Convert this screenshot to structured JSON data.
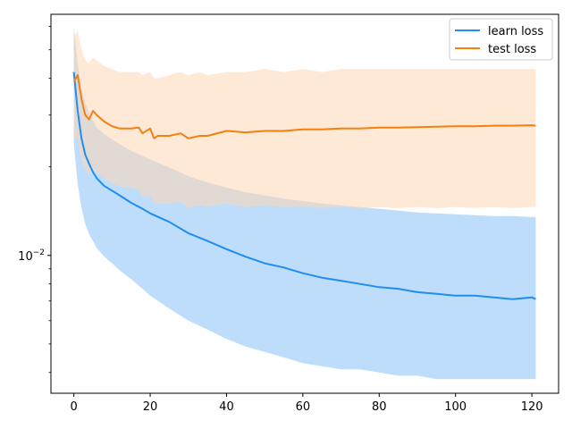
{
  "chart_data": {
    "type": "line",
    "title": "",
    "xlabel": "",
    "ylabel": "",
    "xlim": [
      -6,
      127
    ],
    "ylim": [
      0.0034,
      0.066
    ],
    "yscale": "log",
    "grid": false,
    "legend_position": "top-right",
    "x_ticks": [
      {
        "value": 0,
        "label": "0"
      },
      {
        "value": 20,
        "label": "20"
      },
      {
        "value": 40,
        "label": "40"
      },
      {
        "value": 60,
        "label": "60"
      },
      {
        "value": 80,
        "label": "80"
      },
      {
        "value": 100,
        "label": "100"
      },
      {
        "value": 120,
        "label": "120"
      }
    ],
    "y_major_ticks": [
      {
        "value": 0.01,
        "base": "10",
        "exponent": "−2"
      }
    ],
    "y_minor_ticks": [
      0.004,
      0.005,
      0.006,
      0.007,
      0.008,
      0.009,
      0.02,
      0.03,
      0.04,
      0.05,
      0.06
    ],
    "series": [
      {
        "name": "learn loss",
        "color": "#1f8ef0",
        "fill_color": "#a8d2fa",
        "x": [
          0,
          1,
          2,
          3,
          4,
          5,
          6,
          8,
          10,
          12,
          15,
          18,
          20,
          25,
          30,
          35,
          40,
          45,
          50,
          55,
          60,
          65,
          70,
          75,
          80,
          85,
          90,
          95,
          100,
          105,
          110,
          115,
          120,
          121
        ],
        "mean": [
          0.042,
          0.031,
          0.025,
          0.022,
          0.0205,
          0.0192,
          0.0183,
          0.0172,
          0.0166,
          0.016,
          0.0151,
          0.0144,
          0.0139,
          0.013,
          0.0119,
          0.0112,
          0.0105,
          0.0099,
          0.0094,
          0.0091,
          0.0087,
          0.0084,
          0.0082,
          0.008,
          0.0078,
          0.0077,
          0.0075,
          0.0074,
          0.0073,
          0.0073,
          0.0072,
          0.0071,
          0.0072,
          0.0071
        ],
        "lower": [
          0.024,
          0.0175,
          0.0145,
          0.0128,
          0.0118,
          0.0112,
          0.0106,
          0.0099,
          0.0094,
          0.0089,
          0.0083,
          0.0077,
          0.0073,
          0.0066,
          0.006,
          0.0056,
          0.0052,
          0.0049,
          0.0047,
          0.0045,
          0.0043,
          0.0042,
          0.0041,
          0.0041,
          0.004,
          0.0039,
          0.0039,
          0.0038,
          0.0038,
          0.0038,
          0.0038,
          0.0038,
          0.0038,
          0.0038
        ],
        "upper": [
          0.06,
          0.045,
          0.037,
          0.033,
          0.0305,
          0.0287,
          0.0273,
          0.0258,
          0.0248,
          0.0239,
          0.0227,
          0.0218,
          0.0212,
          0.0199,
          0.0186,
          0.0177,
          0.017,
          0.0164,
          0.016,
          0.0156,
          0.0153,
          0.015,
          0.0148,
          0.0146,
          0.0144,
          0.0142,
          0.014,
          0.0139,
          0.0138,
          0.0137,
          0.0136,
          0.0136,
          0.0135,
          0.0135
        ]
      },
      {
        "name": "test loss",
        "color": "#f5800e",
        "fill_color": "#fdd7b4",
        "x": [
          0,
          1,
          2,
          3,
          4,
          5,
          6,
          8,
          10,
          12,
          15,
          17,
          18,
          20,
          21,
          22,
          25,
          28,
          30,
          33,
          35,
          40,
          45,
          50,
          55,
          60,
          65,
          70,
          75,
          80,
          85,
          90,
          95,
          100,
          105,
          110,
          115,
          120,
          121
        ],
        "mean": [
          0.039,
          0.041,
          0.034,
          0.03,
          0.029,
          0.031,
          0.03,
          0.0285,
          0.0275,
          0.027,
          0.027,
          0.0272,
          0.026,
          0.027,
          0.025,
          0.0255,
          0.0255,
          0.026,
          0.025,
          0.0255,
          0.0255,
          0.0265,
          0.0262,
          0.0265,
          0.0265,
          0.0268,
          0.0268,
          0.027,
          0.027,
          0.0272,
          0.0272,
          0.0273,
          0.0274,
          0.0275,
          0.0275,
          0.0276,
          0.0276,
          0.0277,
          0.0276
        ],
        "lower": [
          0.025,
          0.025,
          0.021,
          0.0195,
          0.0188,
          0.0195,
          0.0192,
          0.0182,
          0.0176,
          0.0172,
          0.017,
          0.0166,
          0.0158,
          0.016,
          0.015,
          0.015,
          0.015,
          0.0152,
          0.0145,
          0.0148,
          0.0146,
          0.015,
          0.0146,
          0.0148,
          0.0146,
          0.0146,
          0.0145,
          0.0146,
          0.0145,
          0.0146,
          0.0145,
          0.0146,
          0.0145,
          0.0146,
          0.0145,
          0.0146,
          0.0145,
          0.0146,
          0.0146
        ],
        "upper": [
          0.055,
          0.058,
          0.05,
          0.046,
          0.045,
          0.047,
          0.046,
          0.044,
          0.043,
          0.042,
          0.042,
          0.042,
          0.041,
          0.042,
          0.04,
          0.04,
          0.041,
          0.042,
          0.041,
          0.042,
          0.041,
          0.042,
          0.042,
          0.043,
          0.042,
          0.043,
          0.042,
          0.043,
          0.043,
          0.043,
          0.043,
          0.043,
          0.043,
          0.043,
          0.043,
          0.043,
          0.043,
          0.043,
          0.043
        ]
      }
    ]
  }
}
